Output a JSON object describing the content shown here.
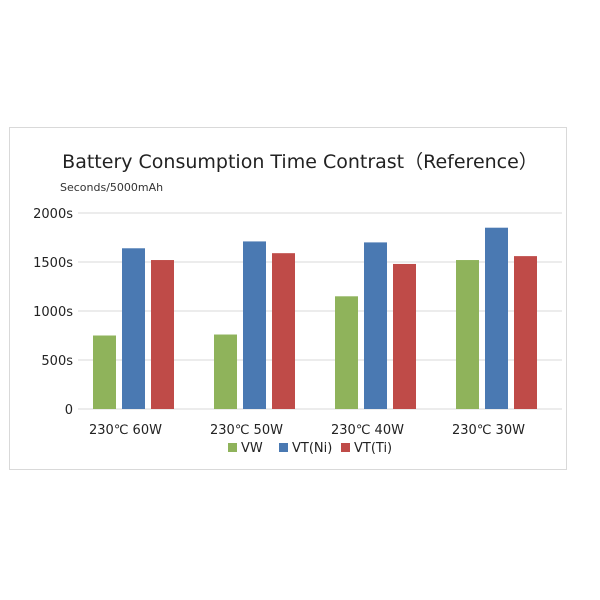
{
  "chart_data": {
    "type": "bar",
    "title": "Battery Consumption Time Contrast（Reference）",
    "ylabel": "Seconds/5000mAh",
    "xlabel": "",
    "categories": [
      "230℃  60W",
      "230℃  50W",
      "230℃  40W",
      "230℃  30W"
    ],
    "series": [
      {
        "name": "VW",
        "values": [
          750,
          760,
          1150,
          1520
        ],
        "color": "#8fb35b"
      },
      {
        "name": "VT(Ni)",
        "values": [
          1640,
          1710,
          1700,
          1850
        ],
        "color": "#4a79b2"
      },
      {
        "name": "VT(Ti)",
        "values": [
          1520,
          1590,
          1480,
          1560
        ],
        "color": "#bf4b48"
      }
    ],
    "ylim": [
      0,
      2000
    ],
    "yticks": [
      0,
      500,
      1000,
      1500,
      2000
    ],
    "ytick_labels": [
      "0",
      "500s",
      "1000s",
      "1500s",
      "2000s"
    ],
    "grid": true,
    "legend_position": "bottom"
  }
}
